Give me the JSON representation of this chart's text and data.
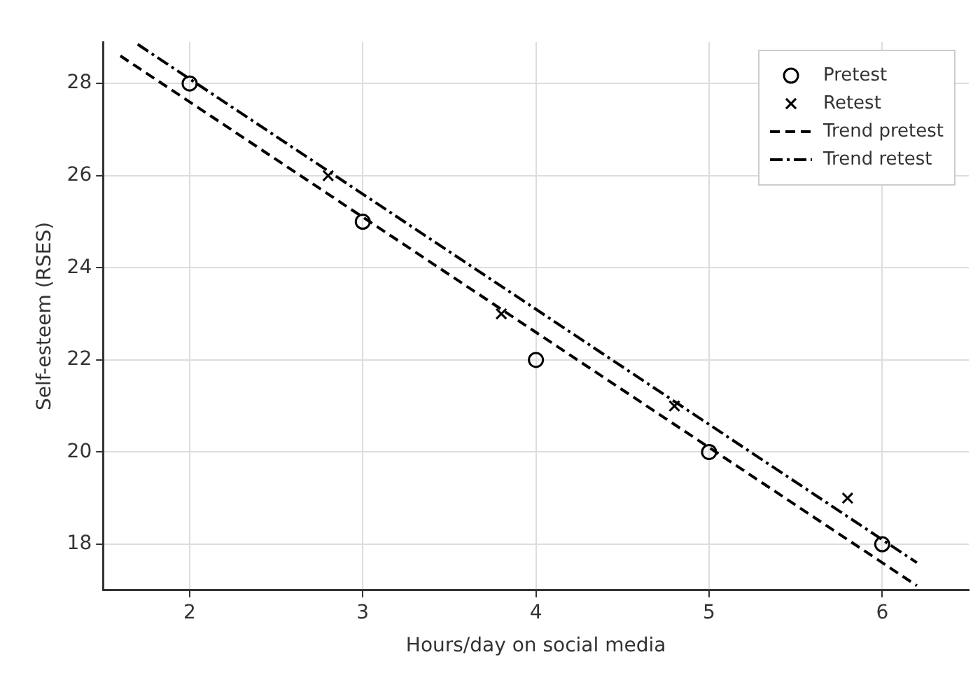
{
  "chart_data": {
    "type": "scatter",
    "xlabel": "Hours/day on social media",
    "ylabel": "Self-esteem (RSES)",
    "xlim": [
      1.5,
      6.5
    ],
    "xticks": [
      2,
      3,
      4,
      5,
      6
    ],
    "ylim": [
      17,
      28.9
    ],
    "yticks": [
      18,
      20,
      22,
      24,
      26,
      28
    ],
    "grid": true,
    "legend": "top right",
    "series": [
      {
        "name": "Pretest",
        "type": "scatter",
        "marker": "circle",
        "color": "#000000",
        "x": [
          2,
          3,
          4,
          5,
          6
        ],
        "values": [
          28,
          25,
          22,
          20,
          18
        ]
      },
      {
        "name": "Retest",
        "type": "scatter",
        "marker": "cross",
        "color": "#000000",
        "x": [
          2.8,
          3.8,
          4.8,
          5.8
        ],
        "values": [
          26,
          23,
          21,
          19
        ]
      },
      {
        "name": "Trend pretest",
        "type": "line",
        "line_style": "dashed",
        "color": "#000000",
        "x": [
          1.6,
          6.2
        ],
        "values": [
          28.6,
          17.1
        ]
      },
      {
        "name": "Trend retest",
        "type": "line",
        "line_style": "dashdot",
        "color": "#000000",
        "x": [
          1.7,
          6.2
        ],
        "values": [
          28.85,
          17.6
        ]
      }
    ]
  }
}
